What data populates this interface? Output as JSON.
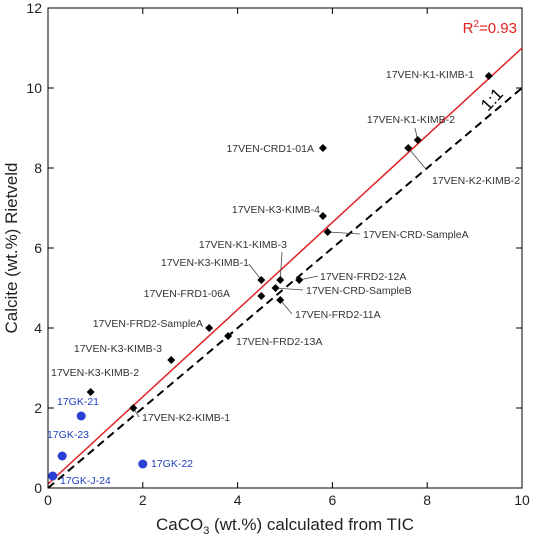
{
  "chart_data": {
    "type": "scatter",
    "xlabel_main": "CaCO",
    "xlabel_sub": "3",
    "xlabel_rest": " (wt.%) calculated from TIC",
    "ylabel": "Calcite (wt.%) Rietveld",
    "xlim": [
      0,
      10
    ],
    "ylim": [
      0,
      12
    ],
    "xticks": [
      0,
      2,
      4,
      6,
      8,
      10
    ],
    "yticks": [
      0,
      2,
      4,
      6,
      8,
      10,
      12
    ],
    "grid": false,
    "fit_line": {
      "x": [
        0,
        10
      ],
      "y": [
        0.1,
        11.0
      ],
      "color": "#e02020"
    },
    "r2_label_main": "R",
    "r2_label_sup": "2",
    "r2_label_rest": "=0.93",
    "one_to_one_label": "1:1",
    "colors": {
      "black_series": "#000000",
      "blue_series": "#2a3fd4",
      "blue_text": "#1f3fbf",
      "fit": "#e02020"
    },
    "series": [
      {
        "marker": "diamond",
        "color": "#000000",
        "points": [
          {
            "label": "17VEN-K1-KIMB-1",
            "x": 9.3,
            "y": 10.3
          },
          {
            "label": "17VEN-K1-KIMB-2",
            "x": 7.8,
            "y": 8.7
          },
          {
            "label": "17VEN-K2-KIMB-2",
            "x": 7.6,
            "y": 8.5
          },
          {
            "label": "17VEN-CRD1-01A",
            "x": 5.8,
            "y": 8.5
          },
          {
            "label": "17VEN-K3-KIMB-4",
            "x": 5.8,
            "y": 6.8
          },
          {
            "label": "17VEN-CRD-SampleA",
            "x": 5.9,
            "y": 6.4
          },
          {
            "label": "17VEN-K1-KIMB-3",
            "x": 4.9,
            "y": 5.2
          },
          {
            "label": "17VEN-K3-KIMB-1",
            "x": 4.5,
            "y": 5.2
          },
          {
            "label": "17VEN-FRD2-12A",
            "x": 5.3,
            "y": 5.2
          },
          {
            "label": "17VEN-CRD-SampleB",
            "x": 4.8,
            "y": 5.0
          },
          {
            "label": "17VEN-FRD1-06A",
            "x": 4.5,
            "y": 4.8
          },
          {
            "label": "17VEN-FRD2-11A",
            "x": 4.9,
            "y": 4.7
          },
          {
            "label": "17VEN-FRD2-SampleA",
            "x": 3.4,
            "y": 4.0
          },
          {
            "label": "17VEN-FRD2-13A",
            "x": 3.8,
            "y": 3.8
          },
          {
            "label": "17VEN-K3-KIMB-3",
            "x": 2.6,
            "y": 3.2
          },
          {
            "label": "17VEN-K3-KIMB-2",
            "x": 0.9,
            "y": 2.4
          },
          {
            "label": "17VEN-K2-KIMB-1",
            "x": 1.8,
            "y": 2.0
          }
        ]
      },
      {
        "marker": "circle",
        "color": "#2a3fd4",
        "points": [
          {
            "label": "17GK-21",
            "x": 0.7,
            "y": 1.8
          },
          {
            "label": "17GK-23",
            "x": 0.3,
            "y": 0.8
          },
          {
            "label": "17GK-22",
            "x": 2.0,
            "y": 0.6
          },
          {
            "label": "17GK-J-24",
            "x": 0.1,
            "y": 0.3
          }
        ]
      }
    ]
  }
}
